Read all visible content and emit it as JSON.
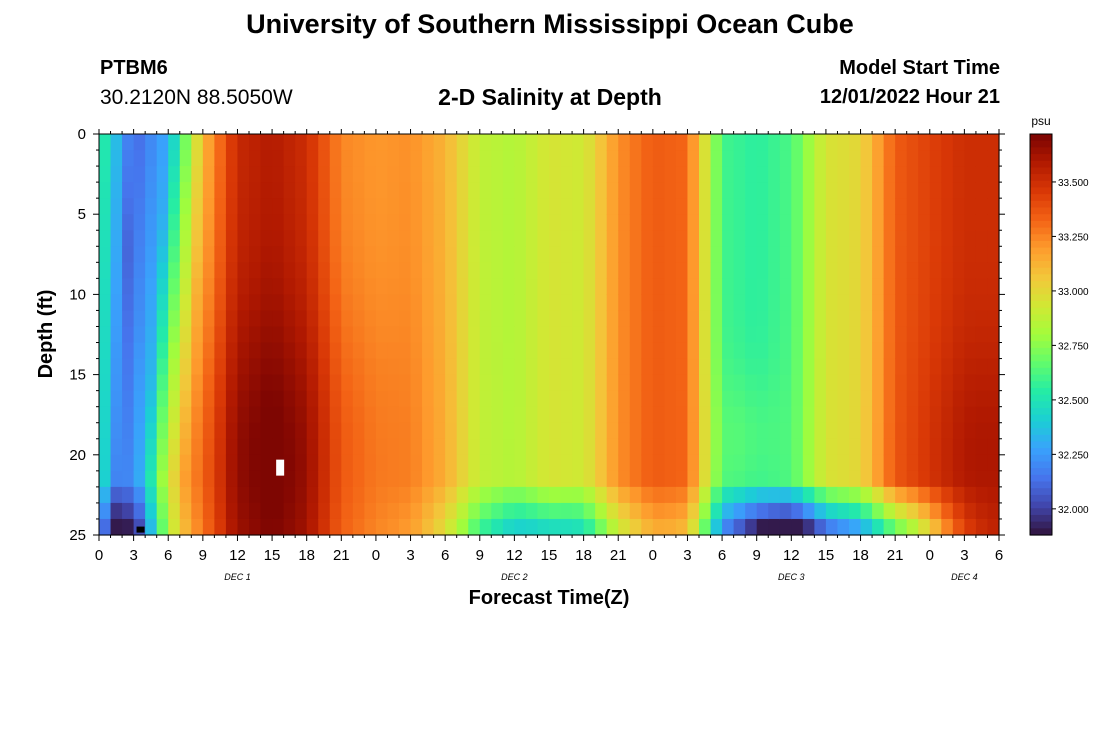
{
  "header": {
    "title": "University of Southern Mississippi Ocean Cube",
    "station_id": "PTBM6",
    "coordinates": "30.2120N  88.5050W",
    "plot_title": "2-D Salinity at Depth",
    "start_label": "Model Start Time",
    "start_value": "12/01/2022 Hour 21"
  },
  "footer": {
    "title": "University of Southern Mississippi Ocean Cube"
  },
  "colors": {
    "colormap": [
      "#30123b",
      "#4145ab",
      "#4675ed",
      "#39a2fc",
      "#1bcfd4",
      "#24eca6",
      "#61fc6c",
      "#a4fc3b",
      "#d1e834",
      "#f3c63a",
      "#fe9b2d",
      "#f36315",
      "#d93806",
      "#b11901",
      "#7a0402"
    ]
  },
  "chart_data": {
    "type": "heatmap",
    "title": "2-D Salinity at Depth",
    "xlabel": "Forecast Time(Z)",
    "ylabel": "Depth (ft)",
    "xlim": [
      0,
      78
    ],
    "ylim": [
      0,
      25
    ],
    "x_ticks": [
      0,
      3,
      6,
      9,
      12,
      15,
      18,
      21,
      24,
      27,
      30,
      33,
      36,
      39,
      42,
      45,
      48,
      51,
      54,
      57,
      60,
      63,
      66,
      69,
      72,
      75,
      78
    ],
    "x_tick_labels": [
      "0",
      "3",
      "6",
      "9",
      "12",
      "15",
      "18",
      "21",
      "0",
      "3",
      "6",
      "9",
      "12",
      "15",
      "18",
      "21",
      "0",
      "3",
      "6",
      "9",
      "12",
      "15",
      "18",
      "21",
      "0",
      "3",
      "6"
    ],
    "day_labels": [
      {
        "text": "DEC 1",
        "x": 12
      },
      {
        "text": "DEC 2",
        "x": 36
      },
      {
        "text": "DEC 3",
        "x": 60
      },
      {
        "text": "DEC 4",
        "x": 75
      }
    ],
    "y_ticks": [
      0,
      5,
      10,
      15,
      20,
      25
    ],
    "y_tick_labels": [
      "0",
      "5",
      "10",
      "15",
      "20",
      "25"
    ],
    "colorbar": {
      "unit": "psu",
      "range": [
        31.88,
        33.72
      ],
      "ticks": [
        32.0,
        32.25,
        32.5,
        32.75,
        33.0,
        33.25,
        33.5
      ],
      "tick_labels": [
        "32.000",
        "32.250",
        "32.500",
        "32.750",
        "33.000",
        "33.250",
        "33.500"
      ]
    },
    "grid_resolution": {
      "hours_per_cell": 1,
      "feet_per_cell": 1
    },
    "surface_salinity_psu": {
      "hours": [
        0,
        3,
        6,
        9,
        12,
        15,
        18,
        21,
        24,
        27,
        30,
        33,
        36,
        39,
        42,
        45,
        48,
        51,
        54,
        57,
        60,
        63,
        66,
        69,
        72,
        75,
        78
      ],
      "values": [
        32.6,
        32.1,
        32.3,
        33.1,
        33.52,
        33.58,
        33.5,
        33.24,
        33.2,
        33.22,
        33.12,
        32.88,
        32.84,
        32.95,
        32.92,
        33.22,
        33.35,
        33.32,
        32.6,
        32.55,
        32.62,
        32.95,
        33.0,
        33.35,
        33.43,
        33.5,
        33.5
      ]
    },
    "features": [
      {
        "name": "salinity-maximum-core",
        "time_hour": 15.5,
        "depth_ft": 20.5,
        "approx_psu": 33.72
      },
      {
        "name": "low-salinity-bottom-layer-day2",
        "time_start_hour": 33,
        "time_end_hour": 45,
        "depth_ft": 24,
        "approx_psu": 32.5
      },
      {
        "name": "low-salinity-bottom-layer-day3",
        "time_start_hour": 55,
        "time_end_hour": 68,
        "depth_ft": 24,
        "approx_psu": 32.0
      }
    ]
  }
}
